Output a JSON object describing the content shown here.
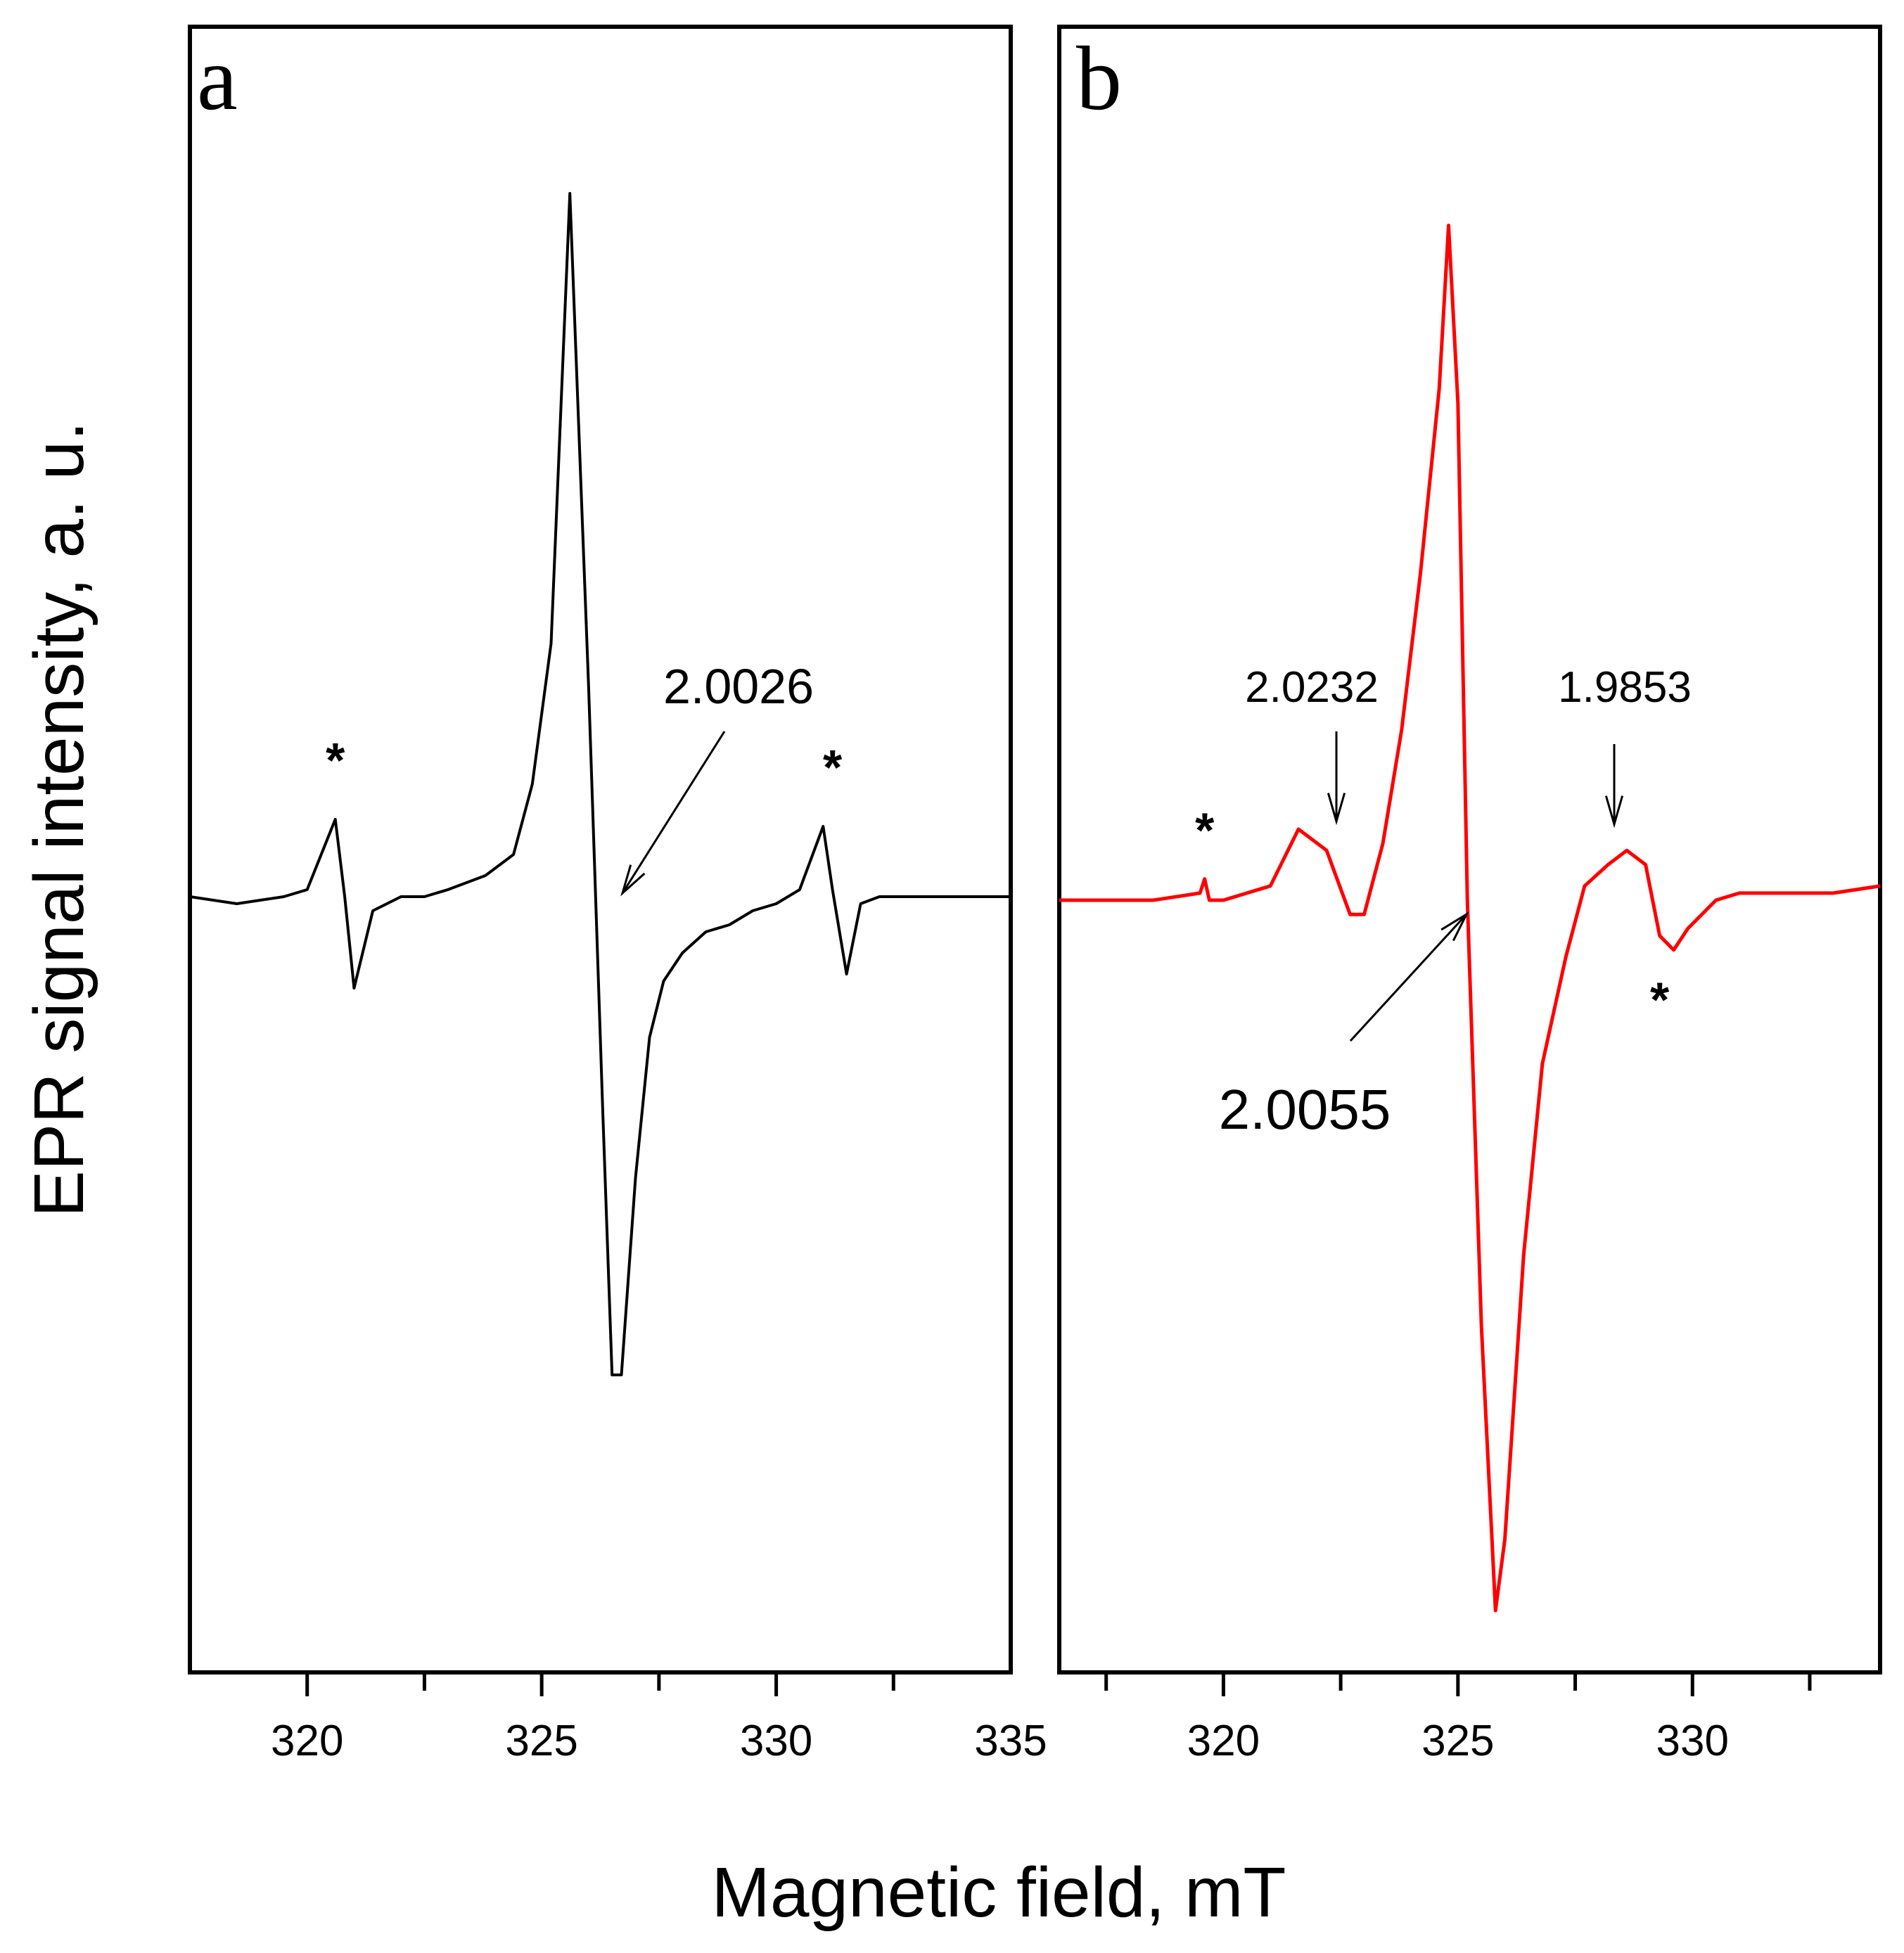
{
  "figure": {
    "ylabel": "EPR signal intensity, a. u.",
    "xlabel": "Magnetic field, mT"
  },
  "chart_data": [
    {
      "type": "line",
      "panel": "a",
      "color": "#000000",
      "xlim": [
        317.5,
        335
      ],
      "xticks": [
        320,
        325,
        330,
        335
      ],
      "x": [
        317.5,
        318.5,
        319.5,
        320.0,
        320.6,
        320.8,
        321.0,
        321.4,
        322.0,
        322.5,
        323.0,
        323.4,
        323.8,
        324.4,
        324.8,
        325.2,
        325.6,
        326.0,
        326.3,
        326.5,
        326.7,
        327.0,
        327.3,
        327.6,
        328.0,
        328.5,
        329.0,
        329.5,
        330.0,
        330.5,
        331.0,
        331.2,
        331.5,
        331.8,
        332.2,
        333.0,
        334.0,
        335.0
      ],
      "y": [
        0.0,
        -0.01,
        0.0,
        0.01,
        0.11,
        0.0,
        -0.13,
        -0.02,
        0.0,
        0.0,
        0.01,
        0.02,
        0.03,
        0.06,
        0.16,
        0.36,
        1.0,
        0.3,
        -0.3,
        -0.68,
        -0.68,
        -0.4,
        -0.2,
        -0.12,
        -0.08,
        -0.05,
        -0.04,
        -0.02,
        -0.01,
        0.01,
        0.1,
        0.01,
        -0.11,
        -0.01,
        0.0,
        0.0,
        0.0,
        0.0
      ],
      "annotations": [
        {
          "text": "2.0026",
          "x": 326.2,
          "y": 0.0
        },
        {
          "text": "*",
          "x": 320.6,
          "y": 0.11
        },
        {
          "text": "*",
          "x": 331.2,
          "y": 0.1
        }
      ]
    },
    {
      "type": "line",
      "panel": "b",
      "color": "#ff0000",
      "xlim": [
        316.5,
        334
      ],
      "xticks": [
        320,
        325,
        330
      ],
      "x": [
        316.5,
        317.5,
        318.5,
        319.5,
        319.6,
        319.7,
        320.0,
        320.5,
        321.0,
        321.6,
        322.2,
        322.7,
        323.0,
        323.4,
        323.8,
        324.2,
        324.6,
        324.8,
        325.0,
        325.2,
        325.5,
        325.8,
        326.0,
        326.2,
        326.4,
        326.8,
        327.3,
        327.7,
        328.2,
        328.6,
        329.0,
        329.3,
        329.6,
        329.9,
        330.5,
        331.0,
        332.0,
        333.0,
        334.0
      ],
      "y": [
        0.0,
        0.0,
        0.0,
        0.01,
        0.03,
        0.0,
        0.0,
        0.01,
        0.02,
        0.1,
        0.07,
        -0.02,
        -0.02,
        0.08,
        0.24,
        0.46,
        0.72,
        0.95,
        0.7,
        0.0,
        -0.6,
        -1.0,
        -0.9,
        -0.7,
        -0.5,
        -0.23,
        -0.08,
        0.02,
        0.05,
        0.07,
        0.05,
        -0.05,
        -0.07,
        -0.04,
        0.0,
        0.01,
        0.01,
        0.01,
        0.02
      ],
      "annotations": [
        {
          "text": "2.0232",
          "x": 322.2,
          "y": 0.1
        },
        {
          "text": "2.0055",
          "x": 324.9,
          "y": 0.0
        },
        {
          "text": "1.9853",
          "x": 328.2,
          "y": 0.05
        },
        {
          "text": "*",
          "x": 319.6,
          "y": 0.03
        },
        {
          "text": "*",
          "x": 329.3,
          "y": -0.06
        }
      ]
    }
  ]
}
